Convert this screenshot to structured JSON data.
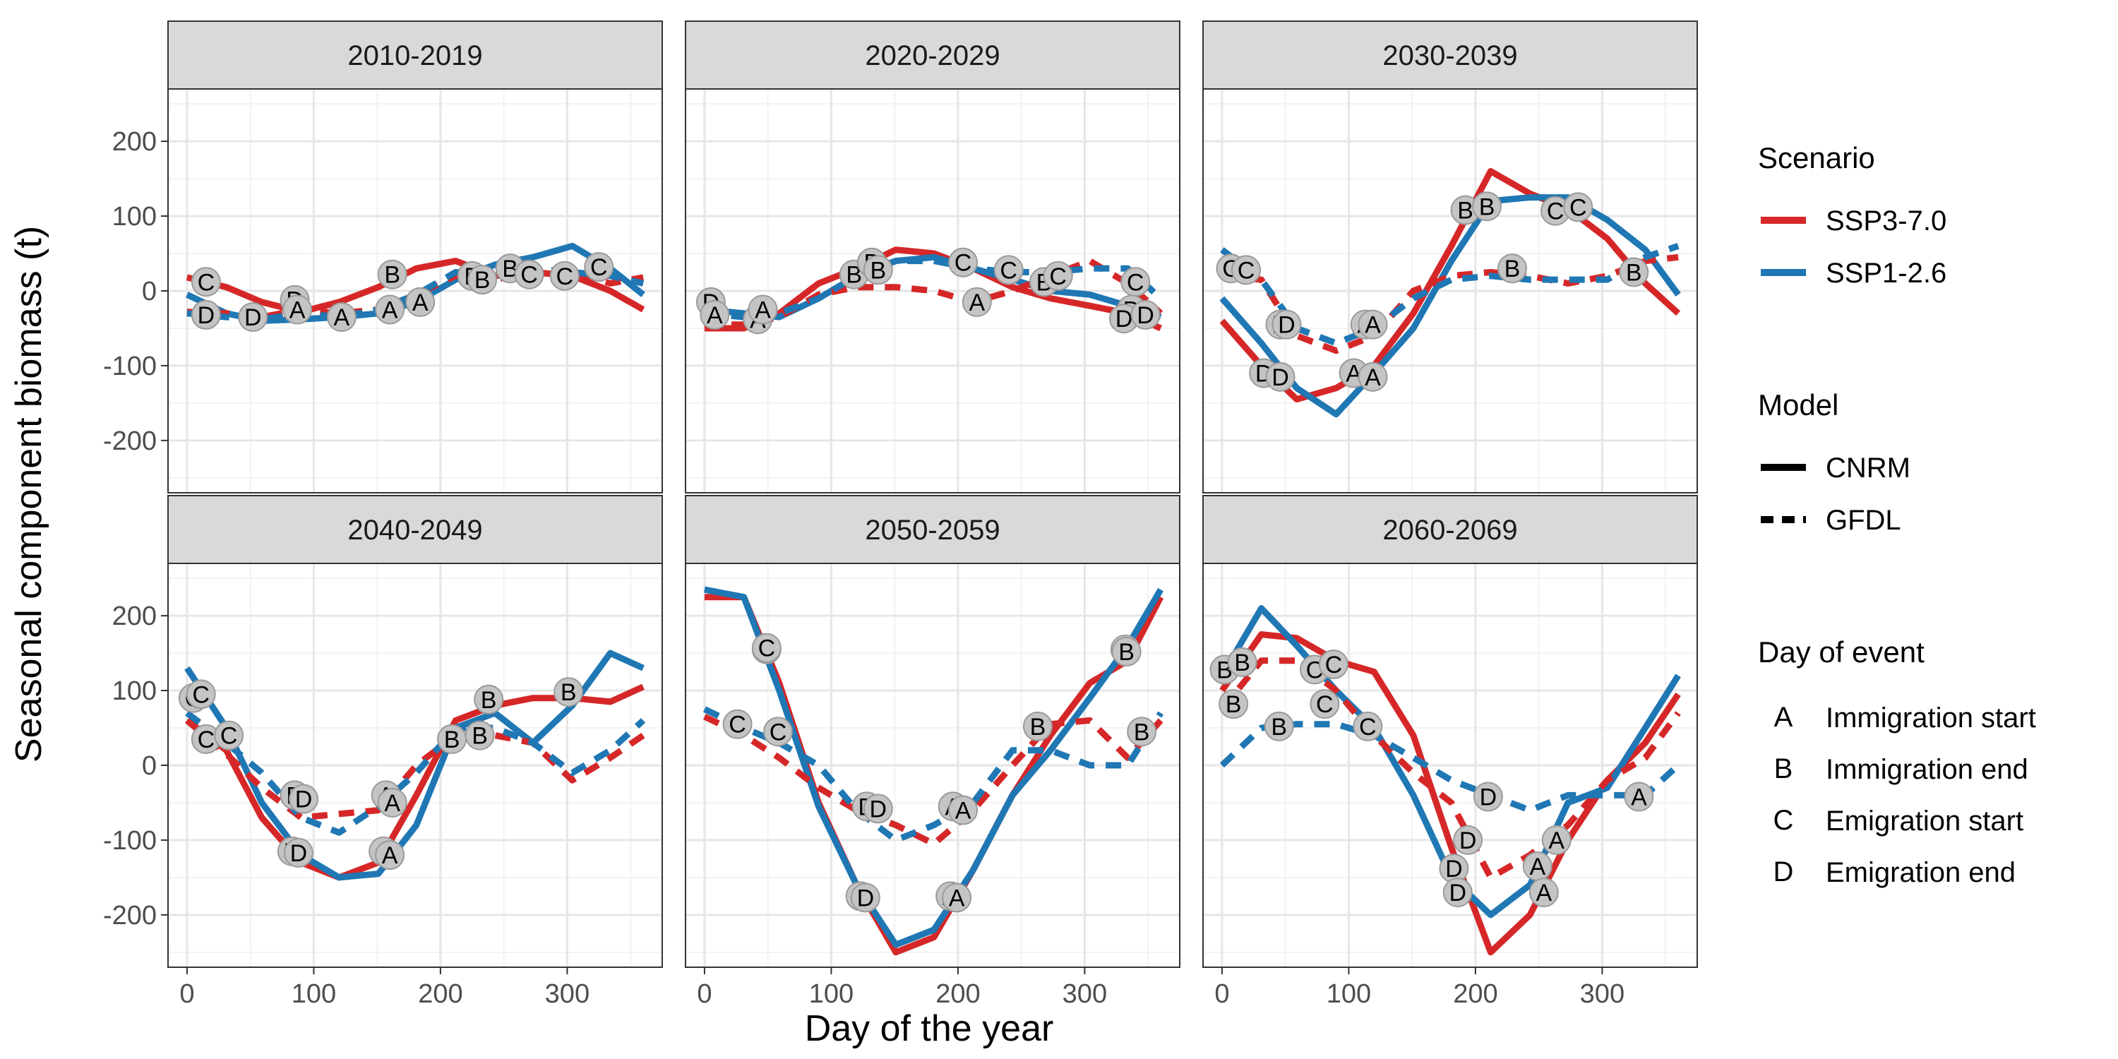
{
  "chart_data": {
    "type": "line",
    "xlabel": "Day of the year",
    "ylabel": "Seasonal component biomass (t)",
    "xlim": [
      -15,
      375
    ],
    "ylim": [
      -270,
      270
    ],
    "xticks": [
      0,
      100,
      200,
      300
    ],
    "yticks": [
      -200,
      -100,
      0,
      100,
      200
    ],
    "grid": true,
    "legend_position": "right",
    "legend": {
      "scenario_title": "Scenario",
      "scenarios": [
        {
          "key": "SSP3-7.0",
          "label": "SSP3-7.0",
          "color": "#d62728"
        },
        {
          "key": "SSP1-2.6",
          "label": "SSP1-2.6",
          "color": "#1f77b4"
        }
      ],
      "model_title": "Model",
      "models": [
        {
          "key": "CNRM",
          "label": "CNRM",
          "dash": "solid"
        },
        {
          "key": "GFDL",
          "label": "GFDL",
          "dash": "dashed"
        }
      ],
      "event_title": "Day of event",
      "events": [
        {
          "code": "A",
          "label": "Immigration start"
        },
        {
          "code": "B",
          "label": "Immigration end"
        },
        {
          "code": "C",
          "label": "Emigration start"
        },
        {
          "code": "D",
          "label": "Emigration end"
        }
      ]
    },
    "x": [
      0,
      31,
      59,
      90,
      120,
      151,
      181,
      212,
      243,
      273,
      304,
      334,
      360
    ],
    "panels": [
      {
        "title": "2010-2019",
        "series": [
          {
            "scenario": "SSP3-7.0",
            "model": "CNRM",
            "values": [
              18,
              5,
              -15,
              -28,
              -15,
              5,
              30,
              40,
              20,
              25,
              20,
              0,
              -25
            ]
          },
          {
            "scenario": "SSP1-2.6",
            "model": "CNRM",
            "values": [
              -5,
              -30,
              -40,
              -38,
              -35,
              -30,
              -15,
              15,
              35,
              45,
              60,
              30,
              -5
            ]
          },
          {
            "scenario": "SSP3-7.0",
            "model": "GFDL",
            "values": [
              -28,
              -30,
              -35,
              -25,
              -30,
              -25,
              -5,
              20,
              15,
              25,
              25,
              10,
              18
            ]
          },
          {
            "scenario": "SSP1-2.6",
            "model": "GFDL",
            "values": [
              -30,
              -35,
              -38,
              -30,
              -35,
              -25,
              -5,
              25,
              20,
              30,
              25,
              20,
              10
            ]
          }
        ],
        "markers": [
          {
            "label": "C",
            "x": 15,
            "y": 12
          },
          {
            "label": "D",
            "x": 15,
            "y": -32
          },
          {
            "label": "D",
            "x": 52,
            "y": -35
          },
          {
            "label": "D",
            "x": 85,
            "y": -12
          },
          {
            "label": "A",
            "x": 87,
            "y": -25
          },
          {
            "label": "A",
            "x": 122,
            "y": -35
          },
          {
            "label": "B",
            "x": 162,
            "y": 22
          },
          {
            "label": "A",
            "x": 160,
            "y": -25
          },
          {
            "label": "A",
            "x": 184,
            "y": -15
          },
          {
            "label": "B",
            "x": 225,
            "y": 20
          },
          {
            "label": "B",
            "x": 233,
            "y": 15
          },
          {
            "label": "B",
            "x": 255,
            "y": 30
          },
          {
            "label": "C",
            "x": 270,
            "y": 22
          },
          {
            "label": "C",
            "x": 298,
            "y": 20
          },
          {
            "label": "C",
            "x": 325,
            "y": 32
          }
        ]
      },
      {
        "title": "2020-2029",
        "series": [
          {
            "scenario": "SSP3-7.0",
            "model": "CNRM",
            "values": [
              -50,
              -50,
              -30,
              10,
              30,
              55,
              50,
              30,
              5,
              -10,
              -20,
              -30,
              -50
            ]
          },
          {
            "scenario": "SSP1-2.6",
            "model": "CNRM",
            "values": [
              -25,
              -30,
              -35,
              -10,
              20,
              40,
              45,
              30,
              15,
              0,
              -5,
              -20,
              -35
            ]
          },
          {
            "scenario": "SSP3-7.0",
            "model": "GFDL",
            "values": [
              -45,
              -45,
              -35,
              -5,
              5,
              5,
              0,
              -15,
              0,
              20,
              40,
              10,
              -30
            ]
          },
          {
            "scenario": "SSP1-2.6",
            "model": "GFDL",
            "values": [
              -30,
              -35,
              -30,
              -10,
              20,
              40,
              40,
              30,
              25,
              25,
              30,
              30,
              -10
            ]
          }
        ],
        "markers": [
          {
            "label": "D",
            "x": 5,
            "y": -15
          },
          {
            "label": "A",
            "x": 8,
            "y": -32
          },
          {
            "label": "A",
            "x": 42,
            "y": -38
          },
          {
            "label": "A",
            "x": 46,
            "y": -25
          },
          {
            "label": "B",
            "x": 118,
            "y": 22
          },
          {
            "label": "B",
            "x": 132,
            "y": 38
          },
          {
            "label": "B",
            "x": 137,
            "y": 28
          },
          {
            "label": "C",
            "x": 204,
            "y": 38
          },
          {
            "label": "A",
            "x": 215,
            "y": -15
          },
          {
            "label": "C",
            "x": 240,
            "y": 28
          },
          {
            "label": "B",
            "x": 268,
            "y": 12
          },
          {
            "label": "C",
            "x": 279,
            "y": 20
          },
          {
            "label": "C",
            "x": 340,
            "y": 12
          },
          {
            "label": "D",
            "x": 337,
            "y": -25
          },
          {
            "label": "D",
            "x": 331,
            "y": -37
          },
          {
            "label": "D",
            "x": 348,
            "y": -32
          }
        ]
      },
      {
        "title": "2030-2039",
        "series": [
          {
            "scenario": "SSP3-7.0",
            "model": "CNRM",
            "values": [
              -40,
              -100,
              -145,
              -130,
              -100,
              -30,
              60,
              160,
              130,
              110,
              70,
              10,
              -30
            ]
          },
          {
            "scenario": "SSP1-2.6",
            "model": "CNRM",
            "values": [
              -10,
              -70,
              -130,
              -165,
              -110,
              -50,
              40,
              120,
              125,
              125,
              95,
              55,
              -5
            ]
          },
          {
            "scenario": "SSP3-7.0",
            "model": "GFDL",
            "values": [
              20,
              15,
              -60,
              -80,
              -60,
              0,
              20,
              25,
              20,
              10,
              20,
              40,
              45
            ]
          },
          {
            "scenario": "SSP1-2.6",
            "model": "GFDL",
            "values": [
              55,
              15,
              -50,
              -70,
              -50,
              -10,
              15,
              20,
              15,
              15,
              15,
              45,
              60
            ]
          }
        ],
        "markers": [
          {
            "label": "C",
            "x": 7,
            "y": 30
          },
          {
            "label": "C",
            "x": 19,
            "y": 28
          },
          {
            "label": "D",
            "x": 46,
            "y": -45
          },
          {
            "label": "D",
            "x": 51,
            "y": -45
          },
          {
            "label": "D",
            "x": 33,
            "y": -110
          },
          {
            "label": "D",
            "x": 46,
            "y": -115
          },
          {
            "label": "A",
            "x": 113,
            "y": -45
          },
          {
            "label": "A",
            "x": 119,
            "y": -45
          },
          {
            "label": "A",
            "x": 104,
            "y": -110
          },
          {
            "label": "A",
            "x": 119,
            "y": -115
          },
          {
            "label": "B",
            "x": 192,
            "y": 108
          },
          {
            "label": "B",
            "x": 209,
            "y": 113
          },
          {
            "label": "B",
            "x": 229,
            "y": 30
          },
          {
            "label": "C",
            "x": 263,
            "y": 107
          },
          {
            "label": "C",
            "x": 281,
            "y": 112
          },
          {
            "label": "B",
            "x": 325,
            "y": 25
          }
        ]
      },
      {
        "title": "2040-2049",
        "series": [
          {
            "scenario": "SSP3-7.0",
            "model": "CNRM",
            "values": [
              60,
              20,
              -70,
              -130,
              -150,
              -130,
              -40,
              60,
              80,
              90,
              90,
              85,
              105
            ]
          },
          {
            "scenario": "SSP1-2.6",
            "model": "CNRM",
            "values": [
              130,
              50,
              -50,
              -120,
              -150,
              -145,
              -80,
              50,
              70,
              30,
              80,
              150,
              130
            ]
          },
          {
            "scenario": "SSP3-7.0",
            "model": "GFDL",
            "values": [
              60,
              15,
              -30,
              -70,
              -65,
              -60,
              0,
              40,
              40,
              30,
              -20,
              10,
              40
            ]
          },
          {
            "scenario": "SSP1-2.6",
            "model": "GFDL",
            "values": [
              70,
              30,
              -10,
              -70,
              -90,
              -55,
              -10,
              50,
              50,
              30,
              -10,
              20,
              60
            ]
          }
        ],
        "markers": [
          {
            "label": "C",
            "x": 5,
            "y": 90
          },
          {
            "label": "C",
            "x": 11,
            "y": 95
          },
          {
            "label": "C",
            "x": 15,
            "y": 35
          },
          {
            "label": "C",
            "x": 33,
            "y": 40
          },
          {
            "label": "D",
            "x": 85,
            "y": -40
          },
          {
            "label": "D",
            "x": 92,
            "y": -45
          },
          {
            "label": "D",
            "x": 83,
            "y": -115
          },
          {
            "label": "D",
            "x": 88,
            "y": -117
          },
          {
            "label": "A",
            "x": 157,
            "y": -40
          },
          {
            "label": "A",
            "x": 162,
            "y": -50
          },
          {
            "label": "A",
            "x": 155,
            "y": -115
          },
          {
            "label": "A",
            "x": 160,
            "y": -120
          },
          {
            "label": "B",
            "x": 209,
            "y": 35
          },
          {
            "label": "B",
            "x": 231,
            "y": 40
          },
          {
            "label": "B",
            "x": 238,
            "y": 88
          },
          {
            "label": "B",
            "x": 301,
            "y": 98
          }
        ]
      },
      {
        "title": "2050-2059",
        "series": [
          {
            "scenario": "SSP3-7.0",
            "model": "CNRM",
            "values": [
              225,
              225,
              110,
              -50,
              -160,
              -250,
              -230,
              -140,
              -40,
              40,
              110,
              140,
              225
            ]
          },
          {
            "scenario": "SSP1-2.6",
            "model": "CNRM",
            "values": [
              235,
              225,
              100,
              -55,
              -160,
              -240,
              -220,
              -140,
              -40,
              20,
              90,
              160,
              235
            ]
          },
          {
            "scenario": "SSP3-7.0",
            "model": "GFDL",
            "values": [
              65,
              40,
              10,
              -30,
              -60,
              -80,
              -105,
              -60,
              0,
              55,
              60,
              10,
              60
            ]
          },
          {
            "scenario": "SSP1-2.6",
            "model": "GFDL",
            "values": [
              75,
              50,
              30,
              0,
              -60,
              -100,
              -80,
              -50,
              20,
              20,
              0,
              0,
              70
            ]
          }
        ],
        "markers": [
          {
            "label": "C",
            "x": 26,
            "y": 55
          },
          {
            "label": "C",
            "x": 58,
            "y": 45
          },
          {
            "label": "C",
            "x": 49,
            "y": 155
          },
          {
            "label": "C",
            "x": 49,
            "y": 157
          },
          {
            "label": "D",
            "x": 128,
            "y": -55
          },
          {
            "label": "D",
            "x": 137,
            "y": -58
          },
          {
            "label": "D",
            "x": 123,
            "y": -175
          },
          {
            "label": "D",
            "x": 127,
            "y": -177
          },
          {
            "label": "A",
            "x": 196,
            "y": -55
          },
          {
            "label": "A",
            "x": 204,
            "y": -60
          },
          {
            "label": "A",
            "x": 194,
            "y": -175
          },
          {
            "label": "A",
            "x": 199,
            "y": -177
          },
          {
            "label": "B",
            "x": 263,
            "y": 52
          },
          {
            "label": "B",
            "x": 332,
            "y": 155
          },
          {
            "label": "B",
            "x": 333,
            "y": 152
          },
          {
            "label": "B",
            "x": 345,
            "y": 45
          }
        ]
      },
      {
        "title": "2060-2069",
        "series": [
          {
            "scenario": "SSP3-7.0",
            "model": "CNRM",
            "values": [
              100,
              175,
              170,
              140,
              125,
              40,
              -110,
              -250,
              -200,
              -100,
              -20,
              30,
              95
            ]
          },
          {
            "scenario": "SSP1-2.6",
            "model": "CNRM",
            "values": [
              120,
              210,
              160,
              100,
              50,
              -40,
              -150,
              -200,
              -160,
              -50,
              -30,
              50,
              120
            ]
          },
          {
            "scenario": "SSP3-7.0",
            "model": "GFDL",
            "values": [
              75,
              140,
              140,
              100,
              40,
              -10,
              -50,
              -150,
              -120,
              -80,
              -20,
              10,
              70
            ]
          },
          {
            "scenario": "SSP1-2.6",
            "model": "GFDL",
            "values": [
              0,
              50,
              55,
              55,
              40,
              10,
              -20,
              -40,
              -60,
              -40,
              -40,
              -40,
              0
            ]
          }
        ],
        "markers": [
          {
            "label": "B",
            "x": 2,
            "y": 128
          },
          {
            "label": "B",
            "x": 16,
            "y": 138
          },
          {
            "label": "B",
            "x": 9,
            "y": 82
          },
          {
            "label": "B",
            "x": 45,
            "y": 52
          },
          {
            "label": "C",
            "x": 73,
            "y": 128
          },
          {
            "label": "C",
            "x": 88,
            "y": 135
          },
          {
            "label": "C",
            "x": 81,
            "y": 82
          },
          {
            "label": "C",
            "x": 115,
            "y": 52
          },
          {
            "label": "D",
            "x": 210,
            "y": -42
          },
          {
            "label": "D",
            "x": 194,
            "y": -100
          },
          {
            "label": "D",
            "x": 183,
            "y": -138
          },
          {
            "label": "D",
            "x": 186,
            "y": -170
          },
          {
            "label": "A",
            "x": 249,
            "y": -135
          },
          {
            "label": "A",
            "x": 264,
            "y": -100
          },
          {
            "label": "A",
            "x": 254,
            "y": -170
          },
          {
            "label": "A",
            "x": 329,
            "y": -42
          }
        ]
      }
    ]
  }
}
